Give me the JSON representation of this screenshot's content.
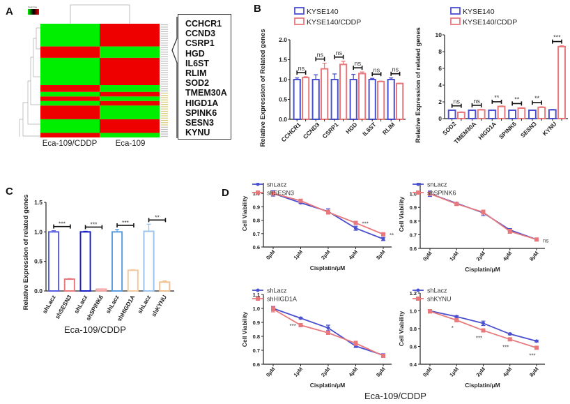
{
  "figure": {
    "panel_labels": [
      "A",
      "B",
      "C",
      "D"
    ],
    "caption_C": "Eca-109/CDDP",
    "caption_D": "Eca-109/CDDP",
    "colors": {
      "blue": "#4a4fd0",
      "red": "#e8787c",
      "heat_green": "#00ee00",
      "heat_red": "#ee0000",
      "c_blue1": "#5a5ee0",
      "c_blue2": "#1a1fc8",
      "c_blue3": "#5b9de0",
      "c_blue4": "#9cc4ee",
      "c_red1": "#e8787c",
      "c_red2": "#f0a0a0",
      "c_peach1": "#f3c9a0",
      "c_peach2": "#f0c090"
    }
  },
  "chart_data": [
    {
      "id": "A",
      "type": "heatmap",
      "title": "",
      "legend_title": "Color Key",
      "columns": [
        "Eca-109/CDDP",
        "Eca-109"
      ],
      "row_blocks": [
        {
          "rows": 10,
          "values": [
            -1,
            1
          ]
        },
        {
          "rows": 5,
          "values": [
            1,
            -1
          ]
        },
        {
          "rows": 12,
          "values": [
            -1,
            1
          ]
        },
        {
          "rows": 3,
          "values": [
            1,
            -1
          ]
        },
        {
          "rows": 2,
          "values": [
            -1,
            1
          ]
        },
        {
          "rows": 2,
          "values": [
            1,
            -1
          ]
        },
        {
          "rows": 2,
          "values": [
            -1,
            1
          ]
        },
        {
          "rows": 6,
          "values": [
            1,
            -1
          ]
        },
        {
          "rows": 6,
          "values": [
            -1,
            1
          ]
        },
        {
          "rows": 2,
          "values": [
            1,
            -1
          ]
        }
      ],
      "highlighted_genes": [
        "CCHCR1",
        "CCND3",
        "CSRP1",
        "HGD",
        "IL6ST",
        "RLIM",
        "SOD2",
        "TMEM30A",
        "HIGD1A",
        "SPINK6",
        "SESN3",
        "KYNU"
      ]
    },
    {
      "id": "B1",
      "type": "bar",
      "title": "",
      "ylabel": "Relative Expression of Related genes",
      "xlabel": "",
      "ylim": [
        0,
        2.0
      ],
      "yticks": [
        0.0,
        0.5,
        1.0,
        1.5,
        2.0
      ],
      "categories": [
        "CCHCR1",
        "CCND3",
        "CSRP1",
        "HGD",
        "IL6ST",
        "RLIM"
      ],
      "series": [
        {
          "name": "KYSE140",
          "values": [
            1.0,
            1.0,
            1.0,
            1.0,
            1.0,
            1.0
          ],
          "errors": [
            0.04,
            0.12,
            0.14,
            0.13,
            0.03,
            0.04
          ]
        },
        {
          "name": "KYSE140/CDDP",
          "values": [
            1.05,
            1.27,
            1.38,
            1.15,
            0.95,
            0.9
          ],
          "errors": [
            0.02,
            0.14,
            0.08,
            0.04,
            0.01,
            0.01
          ]
        }
      ],
      "significance": [
        "ns",
        "ns",
        "ns",
        "ns",
        "ns",
        "ns"
      ],
      "legend": "top-left"
    },
    {
      "id": "B2",
      "type": "bar",
      "title": "",
      "ylabel": "Relative Expression of related genes",
      "xlabel": "",
      "ylim": [
        0,
        10
      ],
      "yticks": [
        0,
        2,
        4,
        6,
        8,
        10
      ],
      "categories": [
        "SOD2",
        "TMEM30A",
        "HIGD1A",
        "SPINK6",
        "SESN3",
        "KYNU"
      ],
      "series": [
        {
          "name": "KYSE140",
          "values": [
            1.0,
            1.0,
            1.0,
            1.0,
            1.0,
            1.05
          ],
          "errors": [
            0.03,
            0.03,
            0.03,
            0.03,
            0.03,
            0.05
          ]
        },
        {
          "name": "KYSE140/CDDP",
          "values": [
            0.75,
            1.05,
            1.45,
            1.25,
            1.35,
            8.6
          ],
          "errors": [
            0.05,
            0.04,
            0.06,
            0.05,
            0.06,
            0.1
          ]
        }
      ],
      "significance": [
        "ns",
        "ns",
        "**",
        "**",
        "**",
        "***"
      ],
      "legend": "top-left"
    },
    {
      "id": "C",
      "type": "bar",
      "title": "",
      "ylabel": "Relative Expression of related genes",
      "xlabel": "Eca-109/CDDP",
      "ylim": [
        0,
        1.5
      ],
      "yticks": [
        0.0,
        0.5,
        1.0,
        1.5
      ],
      "categories": [
        "shLacz",
        "shSESN3",
        "shLacz",
        "shSPINK6",
        "shLacz",
        "shHIGD1A",
        "shLacz",
        "shKYNU"
      ],
      "values": [
        1.0,
        0.2,
        1.0,
        0.03,
        1.0,
        0.35,
        1.01,
        0.15
      ],
      "errors": [
        0.02,
        0.01,
        0.01,
        0.005,
        0.04,
        0.01,
        0.12,
        0.02
      ],
      "significance_pairs": [
        "***",
        "***",
        "***",
        "**"
      ]
    },
    {
      "id": "D1",
      "type": "line",
      "xlabel": "Cisplatin/μM",
      "ylabel": "Cell Viability",
      "x": [
        "0μM",
        "1μM",
        "2μM",
        "4μM",
        "8μM"
      ],
      "ylim": [
        0.6,
        1.1
      ],
      "yticks": [
        0.6,
        0.7,
        0.8,
        0.9,
        1.0,
        1.1
      ],
      "series": [
        {
          "name": "shLacz",
          "values": [
            1.0,
            0.93,
            0.865,
            0.74,
            0.66
          ],
          "errors": [
            0.02,
            0.005,
            0.02,
            0.015,
            0.012
          ]
        },
        {
          "name": "shSESN3",
          "values": [
            1.0,
            0.945,
            0.86,
            0.78,
            0.695
          ],
          "errors": [
            0.01,
            0.005,
            0.015,
            0.005,
            0.005
          ]
        }
      ],
      "annotations": [
        "",
        "",
        "",
        "***",
        "**"
      ],
      "legend": "top-left"
    },
    {
      "id": "D2",
      "type": "line",
      "xlabel": "Cisplatin/μM",
      "ylabel": "Cell Viability",
      "x": [
        "0μM",
        "1μM",
        "2μM",
        "4μM",
        "8μM"
      ],
      "ylim": [
        0.6,
        1.1
      ],
      "yticks": [
        0.6,
        0.7,
        0.8,
        0.9,
        1.0,
        1.1
      ],
      "series": [
        {
          "name": "shLacz",
          "values": [
            1.0,
            0.93,
            0.86,
            0.735,
            0.665
          ],
          "errors": [
            0.02,
            0.005,
            0.02,
            0.01,
            0.01
          ]
        },
        {
          "name": "shSPINK6",
          "values": [
            1.0,
            0.925,
            0.865,
            0.725,
            0.665
          ],
          "errors": [
            0.01,
            0.01,
            0.015,
            0.015,
            0.008
          ]
        }
      ],
      "annotations": [
        "",
        "",
        "",
        "",
        "ns"
      ],
      "legend": "top-left"
    },
    {
      "id": "D3",
      "type": "line",
      "xlabel": "Cisplatin/μM",
      "ylabel": "Cell Viability",
      "x": [
        "0μM",
        "1μM",
        "2μM",
        "4μM",
        "8μM"
      ],
      "ylim": [
        0.6,
        1.1
      ],
      "yticks": [
        0.6,
        0.7,
        0.8,
        0.9,
        1.0,
        1.1
      ],
      "series": [
        {
          "name": "shLacz",
          "values": [
            1.0,
            0.93,
            0.86,
            0.73,
            0.665
          ],
          "errors": [
            0.01,
            0.005,
            0.02,
            0.01,
            0.01
          ]
        },
        {
          "name": "shHIGD1A",
          "values": [
            0.995,
            0.88,
            0.825,
            0.75,
            0.66
          ],
          "errors": [
            0.02,
            0.01,
            0.01,
            0.015,
            0.008
          ]
        }
      ],
      "annotations": [
        "",
        "***",
        "",
        "",
        ""
      ],
      "legend": "top-left"
    },
    {
      "id": "D4",
      "type": "line",
      "xlabel": "Cisplatin/μM",
      "ylabel": "Cell Viability",
      "x": [
        "0μM",
        "1μM",
        "2μM",
        "4μM",
        "8μM"
      ],
      "ylim": [
        0.4,
        1.2
      ],
      "yticks": [
        0.4,
        0.6,
        0.8,
        1.0,
        1.2
      ],
      "series": [
        {
          "name": "shLacz",
          "values": [
            1.0,
            0.935,
            0.86,
            0.74,
            0.66
          ],
          "errors": [
            0.01,
            0.01,
            0.025,
            0.01,
            0.01
          ]
        },
        {
          "name": "shKYNU",
          "values": [
            0.995,
            0.895,
            0.78,
            0.68,
            0.585
          ],
          "errors": [
            0.02,
            0.01,
            0.01,
            0.01,
            0.01
          ]
        }
      ],
      "annotations": [
        "",
        "*",
        "***",
        "***",
        "***"
      ],
      "legend": "top-left"
    }
  ]
}
